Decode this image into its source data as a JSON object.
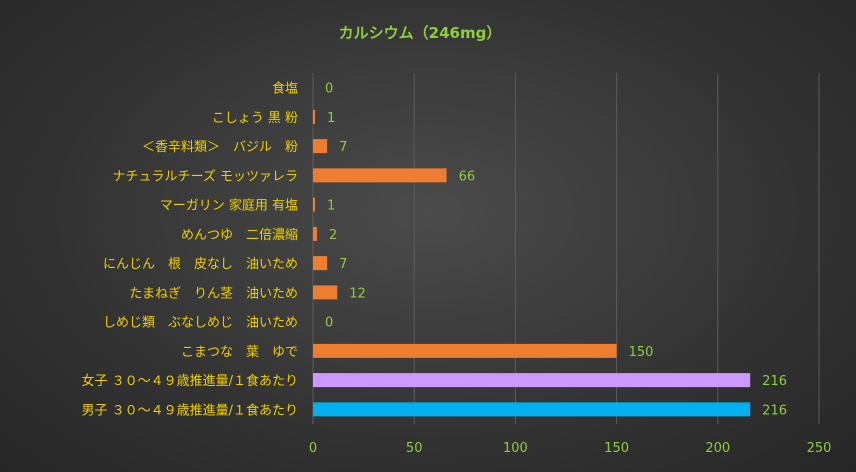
{
  "chart_data": {
    "type": "bar",
    "orientation": "horizontal",
    "title": "カルシウム（246mg）",
    "xlim": [
      0,
      250
    ],
    "x_ticks": [
      0,
      50,
      100,
      150,
      200,
      250
    ],
    "grid": true,
    "legend": "none",
    "categories": [
      "食塩",
      "こしょう 黒 粉",
      "＜香辛料類＞　バジル　粉",
      "ナチュラルチーズ モッツァレラ",
      "マーガリン 家庭用 有塩",
      "めんつゆ　二倍濃縮",
      "にんじん　根　皮なし　油いため",
      "たまねぎ　りん茎　油いため",
      "しめじ類　ぶなしめじ　油いため",
      "こまつな　葉　ゆで",
      "女子 ３０～４９歳推進量/１食あたり",
      "男子 ３０～４９歳推進量/１食あたり"
    ],
    "values": [
      0,
      1,
      7,
      66,
      1,
      2,
      7,
      12,
      0,
      150,
      216,
      216
    ],
    "value_labels": [
      "0",
      "1",
      "7",
      "66",
      "1",
      "2",
      "7",
      "12",
      "0",
      "150",
      "216",
      "216"
    ],
    "colors": [
      "#ed7d31",
      "#ed7d31",
      "#ed7d31",
      "#ed7d31",
      "#ed7d31",
      "#ed7d31",
      "#ed7d31",
      "#ed7d31",
      "#ed7d31",
      "#ed7d31",
      "#cc99ff",
      "#00b0f0"
    ]
  }
}
